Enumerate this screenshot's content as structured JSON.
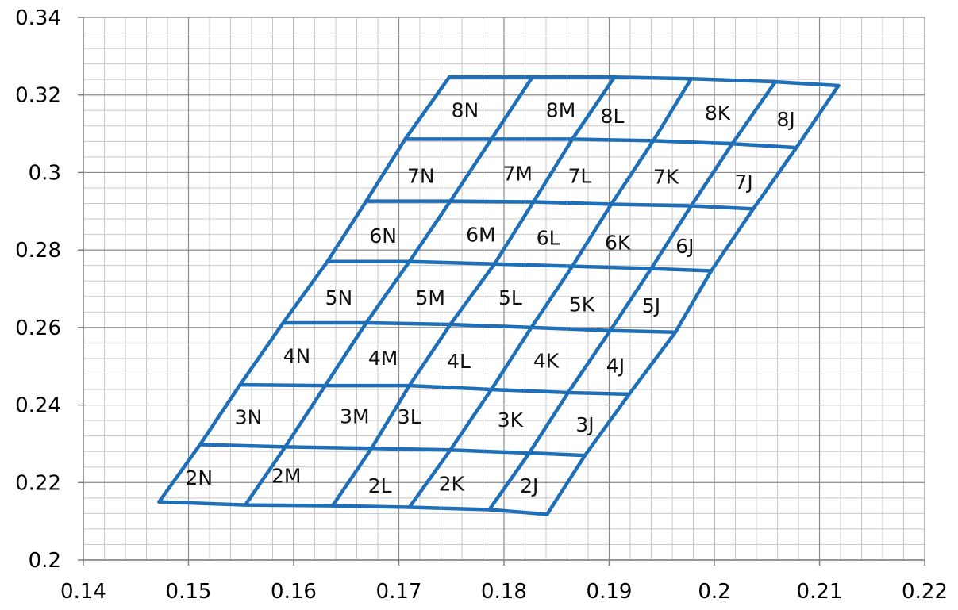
{
  "chart_data": {
    "type": "line",
    "title": "",
    "xlabel": "",
    "ylabel": "",
    "xlim": [
      0.14,
      0.22
    ],
    "ylim": [
      0.2,
      0.34
    ],
    "x_ticks": [
      "0.14",
      "0.15",
      "0.16",
      "0.17",
      "0.18",
      "0.19",
      "0.2",
      "0.21",
      "0.22"
    ],
    "y_ticks": [
      "0.2",
      "0.22",
      "0.24",
      "0.26",
      "0.28",
      "0.3",
      "0.32",
      "0.34"
    ],
    "x_tick_values": [
      0.14,
      0.15,
      0.16,
      0.17,
      0.18,
      0.19,
      0.2,
      0.21,
      0.22
    ],
    "y_tick_values": [
      0.2,
      0.22,
      0.24,
      0.26,
      0.28,
      0.3,
      0.32,
      0.34
    ],
    "grid": true,
    "minor_grid_step_x": 0.002,
    "minor_grid_step_y": 0.004,
    "line_color": "#1f6fb8",
    "rows": [
      "2",
      "3",
      "4",
      "5",
      "6",
      "7",
      "8"
    ],
    "columns": [
      "N",
      "M",
      "L",
      "K",
      "J"
    ],
    "row_lines": [
      {
        "x": [
          0.1472,
          0.1554,
          0.1637,
          0.171,
          0.1786,
          0.1841
        ],
        "y": [
          0.215,
          0.2142,
          0.214,
          0.2136,
          0.213,
          0.2118
        ]
      },
      {
        "x": [
          0.1511,
          0.1592,
          0.1674,
          0.1749,
          0.1824,
          0.1877
        ],
        "y": [
          0.2298,
          0.2292,
          0.2288,
          0.2284,
          0.2276,
          0.227
        ]
      },
      {
        "x": [
          0.1549,
          0.163,
          0.171,
          0.1788,
          0.1861,
          0.1919
        ],
        "y": [
          0.2452,
          0.245,
          0.245,
          0.244,
          0.2432,
          0.2428
        ]
      },
      {
        "x": [
          0.159,
          0.1669,
          0.1749,
          0.1826,
          0.1901,
          0.1963
        ],
        "y": [
          0.2612,
          0.2612,
          0.2608,
          0.26,
          0.2592,
          0.2588
        ]
      },
      {
        "x": [
          0.1632,
          0.171,
          0.1791,
          0.1865,
          0.194,
          0.1997
        ],
        "y": [
          0.277,
          0.277,
          0.2764,
          0.2758,
          0.2752,
          0.2746
        ]
      },
      {
        "x": [
          0.1669,
          0.1749,
          0.1828,
          0.1902,
          0.1978,
          0.2037
        ],
        "y": [
          0.2926,
          0.2926,
          0.2924,
          0.2918,
          0.2914,
          0.2906
        ]
      },
      {
        "x": [
          0.1706,
          0.1788,
          0.1865,
          0.1942,
          0.2017,
          0.2078
        ],
        "y": [
          0.3086,
          0.3086,
          0.3086,
          0.3082,
          0.3074,
          0.3064
        ]
      },
      {
        "x": [
          0.1748,
          0.1827,
          0.1905,
          0.1978,
          0.2058,
          0.2118
        ],
        "y": [
          0.3246,
          0.3246,
          0.3246,
          0.3242,
          0.3234,
          0.3224
        ]
      }
    ],
    "cell_labels": [
      {
        "text": "2N",
        "x": 0.151,
        "y": 0.2213
      },
      {
        "text": "2M",
        "x": 0.1593,
        "y": 0.2218
      },
      {
        "text": "2L",
        "x": 0.1682,
        "y": 0.2192
      },
      {
        "text": "2K",
        "x": 0.175,
        "y": 0.2198
      },
      {
        "text": "2J",
        "x": 0.1824,
        "y": 0.2192
      },
      {
        "text": "3N",
        "x": 0.1557,
        "y": 0.2369
      },
      {
        "text": "3M",
        "x": 0.1658,
        "y": 0.2371
      },
      {
        "text": "3L",
        "x": 0.171,
        "y": 0.237
      },
      {
        "text": "3K",
        "x": 0.1806,
        "y": 0.2362
      },
      {
        "text": "3J",
        "x": 0.1877,
        "y": 0.235
      },
      {
        "text": "4N",
        "x": 0.1603,
        "y": 0.2527
      },
      {
        "text": "4M",
        "x": 0.1685,
        "y": 0.2522
      },
      {
        "text": "4L",
        "x": 0.1757,
        "y": 0.2514
      },
      {
        "text": "4K",
        "x": 0.184,
        "y": 0.2515
      },
      {
        "text": "4J",
        "x": 0.1906,
        "y": 0.2502
      },
      {
        "text": "5N",
        "x": 0.1643,
        "y": 0.2677
      },
      {
        "text": "5M",
        "x": 0.173,
        "y": 0.2677
      },
      {
        "text": "5L",
        "x": 0.1806,
        "y": 0.2677
      },
      {
        "text": "5K",
        "x": 0.1874,
        "y": 0.266
      },
      {
        "text": "5J",
        "x": 0.194,
        "y": 0.2657
      },
      {
        "text": "6N",
        "x": 0.1685,
        "y": 0.2837
      },
      {
        "text": "6M",
        "x": 0.1778,
        "y": 0.284
      },
      {
        "text": "6L",
        "x": 0.1842,
        "y": 0.2832
      },
      {
        "text": "6K",
        "x": 0.1908,
        "y": 0.282
      },
      {
        "text": "6J",
        "x": 0.1972,
        "y": 0.2811
      },
      {
        "text": "7N",
        "x": 0.1721,
        "y": 0.2992
      },
      {
        "text": "7M",
        "x": 0.1813,
        "y": 0.2998
      },
      {
        "text": "7L",
        "x": 0.1872,
        "y": 0.2992
      },
      {
        "text": "7K",
        "x": 0.1954,
        "y": 0.299
      },
      {
        "text": "7J",
        "x": 0.2028,
        "y": 0.2976
      },
      {
        "text": "8N",
        "x": 0.1763,
        "y": 0.3162
      },
      {
        "text": "8M",
        "x": 0.1854,
        "y": 0.3162
      },
      {
        "text": "8L",
        "x": 0.1903,
        "y": 0.3146
      },
      {
        "text": "8K",
        "x": 0.2003,
        "y": 0.3154
      },
      {
        "text": "8J",
        "x": 0.2068,
        "y": 0.3138
      }
    ]
  }
}
